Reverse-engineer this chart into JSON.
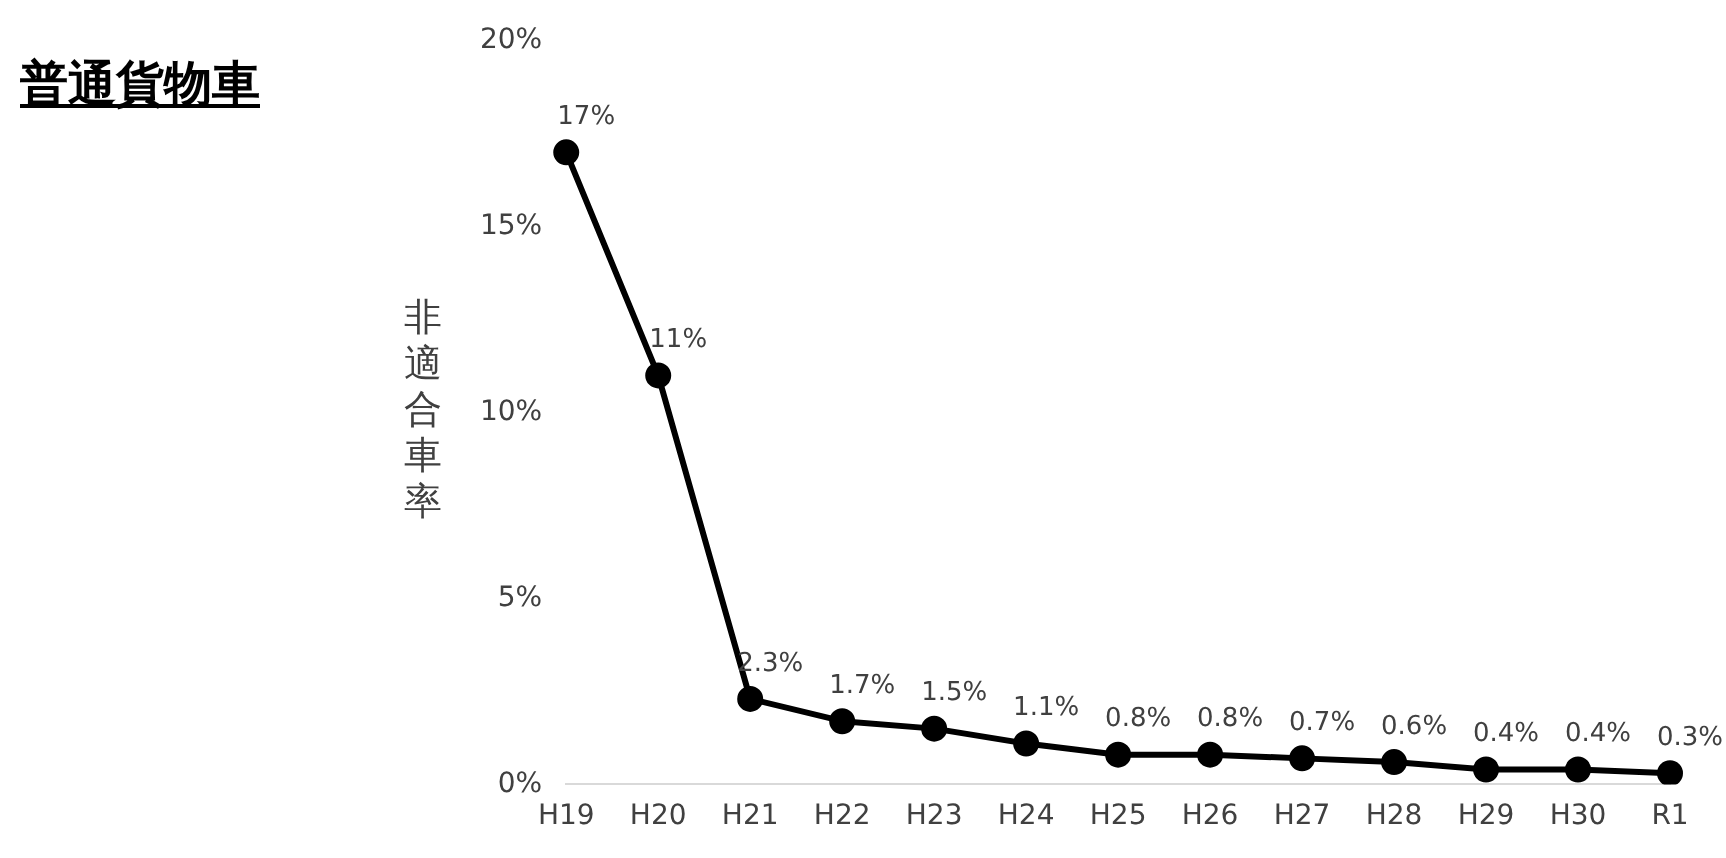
{
  "chart_data": {
    "type": "line",
    "title": "普通貨物車",
    "ylabel": "非適合車率",
    "categories": [
      "H19",
      "H20",
      "H21",
      "H22",
      "H23",
      "H24",
      "H25",
      "H26",
      "H27",
      "H28",
      "H29",
      "H30",
      "R1"
    ],
    "series": [
      {
        "color": "#000000",
        "values": [
          17,
          11,
          2.3,
          1.7,
          1.5,
          1.1,
          0.8,
          0.8,
          0.7,
          0.6,
          0.4,
          0.4,
          0.3
        ],
        "value_labels": [
          "17%",
          "11%",
          "2.3%",
          "1.7%",
          "1.5%",
          "1.1%",
          "0.8%",
          "0.8%",
          "0.7%",
          "0.6%",
          "0.4%",
          "0.4%",
          "0.3%"
        ]
      }
    ],
    "ylim": [
      0,
      20
    ],
    "yticks": [
      {
        "value": 0,
        "label": "0%"
      },
      {
        "value": 5,
        "label": "5%"
      },
      {
        "value": 10,
        "label": "10%"
      },
      {
        "value": 15,
        "label": "15%"
      },
      {
        "value": 20,
        "label": "20%"
      }
    ],
    "grid": false,
    "legend": false,
    "marker": "circle",
    "line_style": "solid"
  }
}
